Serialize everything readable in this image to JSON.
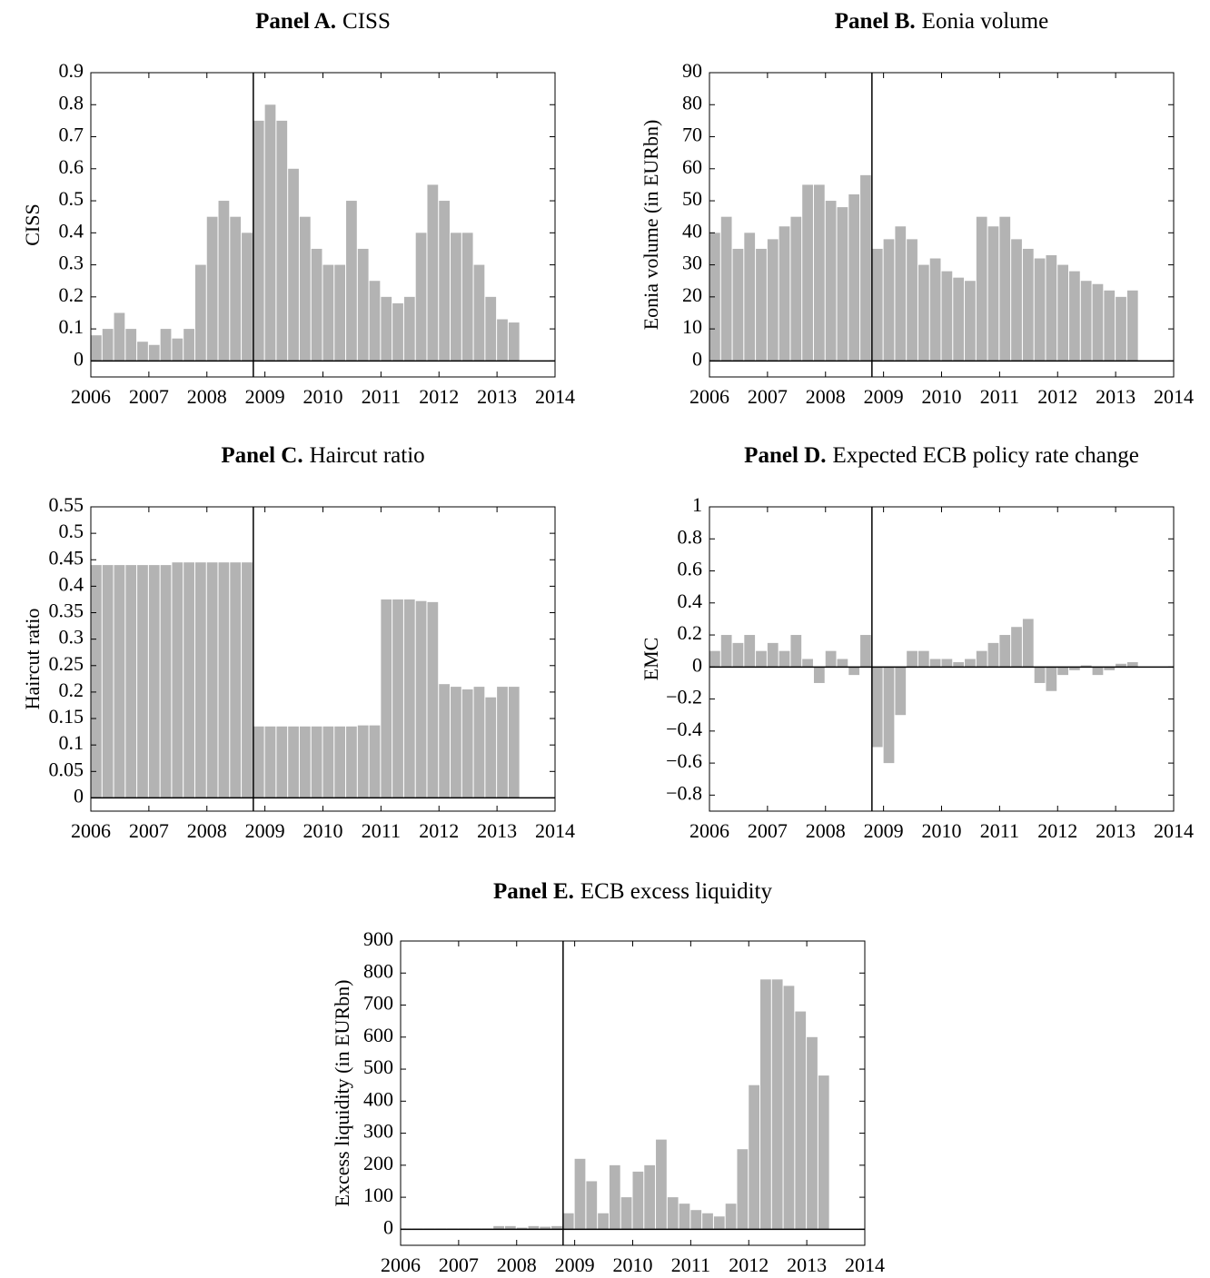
{
  "chart_data": [
    {
      "type": "bar",
      "title_prefix": "Panel A.",
      "title": "CISS",
      "y_label": "CISS",
      "color": "#b3b3b3",
      "xlim": [
        2006,
        2014
      ],
      "xticks": [
        2006,
        2007,
        2008,
        2009,
        2010,
        2011,
        2012,
        2013,
        2014
      ],
      "ylim": [
        -0.05,
        0.9
      ],
      "yticks": [
        0,
        0.1,
        0.2,
        0.3,
        0.4,
        0.5,
        0.6,
        0.7,
        0.8,
        0.9
      ],
      "vline": 2008.8,
      "x": [
        2006.0,
        2006.2,
        2006.4,
        2006.6,
        2006.8,
        2007.0,
        2007.2,
        2007.4,
        2007.6,
        2007.8,
        2008.0,
        2008.2,
        2008.4,
        2008.6,
        2008.8,
        2009.0,
        2009.2,
        2009.4,
        2009.6,
        2009.8,
        2010.0,
        2010.2,
        2010.4,
        2010.6,
        2010.8,
        2011.0,
        2011.2,
        2011.4,
        2011.6,
        2011.8,
        2012.0,
        2012.2,
        2012.4,
        2012.6,
        2012.8,
        2013.0,
        2013.2
      ],
      "values": [
        0.08,
        0.1,
        0.15,
        0.1,
        0.06,
        0.05,
        0.1,
        0.07,
        0.1,
        0.3,
        0.45,
        0.5,
        0.45,
        0.4,
        0.75,
        0.8,
        0.75,
        0.6,
        0.45,
        0.35,
        0.3,
        0.3,
        0.5,
        0.35,
        0.25,
        0.2,
        0.18,
        0.2,
        0.4,
        0.55,
        0.5,
        0.4,
        0.4,
        0.3,
        0.2,
        0.13,
        0.12
      ]
    },
    {
      "type": "bar",
      "title_prefix": "Panel B.",
      "title": "Eonia volume",
      "y_label": "Eonia volume (in EURbn)",
      "color": "#b3b3b3",
      "xlim": [
        2006,
        2014
      ],
      "xticks": [
        2006,
        2007,
        2008,
        2009,
        2010,
        2011,
        2012,
        2013,
        2014
      ],
      "ylim": [
        -5,
        90
      ],
      "yticks": [
        0,
        10,
        20,
        30,
        40,
        50,
        60,
        70,
        80,
        90
      ],
      "vline": 2008.8,
      "x": [
        2006.0,
        2006.2,
        2006.4,
        2006.6,
        2006.8,
        2007.0,
        2007.2,
        2007.4,
        2007.6,
        2007.8,
        2008.0,
        2008.2,
        2008.4,
        2008.6,
        2008.8,
        2009.0,
        2009.2,
        2009.4,
        2009.6,
        2009.8,
        2010.0,
        2010.2,
        2010.4,
        2010.6,
        2010.8,
        2011.0,
        2011.2,
        2011.4,
        2011.6,
        2011.8,
        2012.0,
        2012.2,
        2012.4,
        2012.6,
        2012.8,
        2013.0,
        2013.2
      ],
      "values": [
        40,
        45,
        35,
        40,
        35,
        38,
        42,
        45,
        55,
        55,
        50,
        48,
        52,
        58,
        35,
        38,
        42,
        38,
        30,
        32,
        28,
        26,
        25,
        45,
        42,
        45,
        38,
        35,
        32,
        33,
        30,
        28,
        25,
        24,
        22,
        20,
        22
      ]
    },
    {
      "type": "bar",
      "title_prefix": "Panel C.",
      "title": "Haircut ratio",
      "y_label": "Haircut ratio",
      "color": "#b3b3b3",
      "xlim": [
        2006,
        2014
      ],
      "xticks": [
        2006,
        2007,
        2008,
        2009,
        2010,
        2011,
        2012,
        2013,
        2014
      ],
      "ylim": [
        -0.025,
        0.55
      ],
      "yticks": [
        0,
        0.05,
        0.1,
        0.15,
        0.2,
        0.25,
        0.3,
        0.35,
        0.4,
        0.45,
        0.5,
        0.55
      ],
      "vline": 2008.8,
      "x": [
        2006.0,
        2006.2,
        2006.4,
        2006.6,
        2006.8,
        2007.0,
        2007.2,
        2007.4,
        2007.6,
        2007.8,
        2008.0,
        2008.2,
        2008.4,
        2008.6,
        2008.8,
        2009.0,
        2009.2,
        2009.4,
        2009.6,
        2009.8,
        2010.0,
        2010.2,
        2010.4,
        2010.6,
        2010.8,
        2011.0,
        2011.2,
        2011.4,
        2011.6,
        2011.8,
        2012.0,
        2012.2,
        2012.4,
        2012.6,
        2012.8,
        2013.0,
        2013.2
      ],
      "values": [
        0.44,
        0.44,
        0.44,
        0.44,
        0.44,
        0.44,
        0.44,
        0.445,
        0.445,
        0.445,
        0.445,
        0.445,
        0.445,
        0.445,
        0.135,
        0.135,
        0.135,
        0.135,
        0.135,
        0.135,
        0.135,
        0.135,
        0.135,
        0.137,
        0.137,
        0.375,
        0.375,
        0.375,
        0.372,
        0.37,
        0.215,
        0.21,
        0.205,
        0.21,
        0.19,
        0.21,
        0.21
      ]
    },
    {
      "type": "bar",
      "title_prefix": "Panel D.",
      "title": "Expected ECB policy rate change",
      "y_label": "EMC",
      "color": "#b3b3b3",
      "xlim": [
        2006,
        2014
      ],
      "xticks": [
        2006,
        2007,
        2008,
        2009,
        2010,
        2011,
        2012,
        2013,
        2014
      ],
      "ylim": [
        -0.9,
        1
      ],
      "yticks": [
        {
          "value": -0.8,
          "label": "−0.8"
        },
        {
          "value": -0.6,
          "label": "−0.6"
        },
        {
          "value": -0.4,
          "label": "−0.4"
        },
        {
          "value": -0.2,
          "label": "−0.2"
        },
        0,
        0.2,
        0.4,
        0.6,
        0.8,
        1
      ],
      "vline": 2008.8,
      "x": [
        2006.0,
        2006.2,
        2006.4,
        2006.6,
        2006.8,
        2007.0,
        2007.2,
        2007.4,
        2007.6,
        2007.8,
        2008.0,
        2008.2,
        2008.4,
        2008.6,
        2008.8,
        2009.0,
        2009.2,
        2009.4,
        2009.6,
        2009.8,
        2010.0,
        2010.2,
        2010.4,
        2010.6,
        2010.8,
        2011.0,
        2011.2,
        2011.4,
        2011.6,
        2011.8,
        2012.0,
        2012.2,
        2012.4,
        2012.6,
        2012.8,
        2013.0,
        2013.2
      ],
      "values": [
        0.1,
        0.2,
        0.15,
        0.2,
        0.1,
        0.15,
        0.1,
        0.2,
        0.05,
        -0.1,
        0.1,
        0.05,
        -0.05,
        0.2,
        -0.5,
        -0.6,
        -0.3,
        0.1,
        0.1,
        0.05,
        0.05,
        0.03,
        0.05,
        0.1,
        0.15,
        0.2,
        0.25,
        0.3,
        -0.1,
        -0.15,
        -0.05,
        -0.02,
        0.01,
        -0.05,
        -0.02,
        0.02,
        0.03
      ]
    },
    {
      "type": "bar",
      "title_prefix": "Panel E.",
      "title": "ECB excess liquidity",
      "y_label": "Excess liquidity (in EURbn)",
      "color": "#b3b3b3",
      "xlim": [
        2006,
        2014
      ],
      "xticks": [
        2006,
        2007,
        2008,
        2009,
        2010,
        2011,
        2012,
        2013,
        2014
      ],
      "ylim": [
        -50,
        900
      ],
      "yticks": [
        0,
        100,
        200,
        300,
        400,
        500,
        600,
        700,
        800,
        900
      ],
      "vline": 2008.8,
      "x": [
        2006.0,
        2006.2,
        2006.4,
        2006.6,
        2006.8,
        2007.0,
        2007.2,
        2007.4,
        2007.6,
        2007.8,
        2008.0,
        2008.2,
        2008.4,
        2008.6,
        2008.8,
        2009.0,
        2009.2,
        2009.4,
        2009.6,
        2009.8,
        2010.0,
        2010.2,
        2010.4,
        2010.6,
        2010.8,
        2011.0,
        2011.2,
        2011.4,
        2011.6,
        2011.8,
        2012.0,
        2012.2,
        2012.4,
        2012.6,
        2012.8,
        2013.0,
        2013.2
      ],
      "values": [
        2,
        2,
        2,
        2,
        2,
        2,
        2,
        2,
        10,
        10,
        5,
        10,
        8,
        10,
        50,
        220,
        150,
        50,
        200,
        100,
        180,
        200,
        280,
        100,
        80,
        60,
        50,
        40,
        80,
        250,
        450,
        780,
        780,
        760,
        680,
        600,
        480
      ]
    }
  ]
}
